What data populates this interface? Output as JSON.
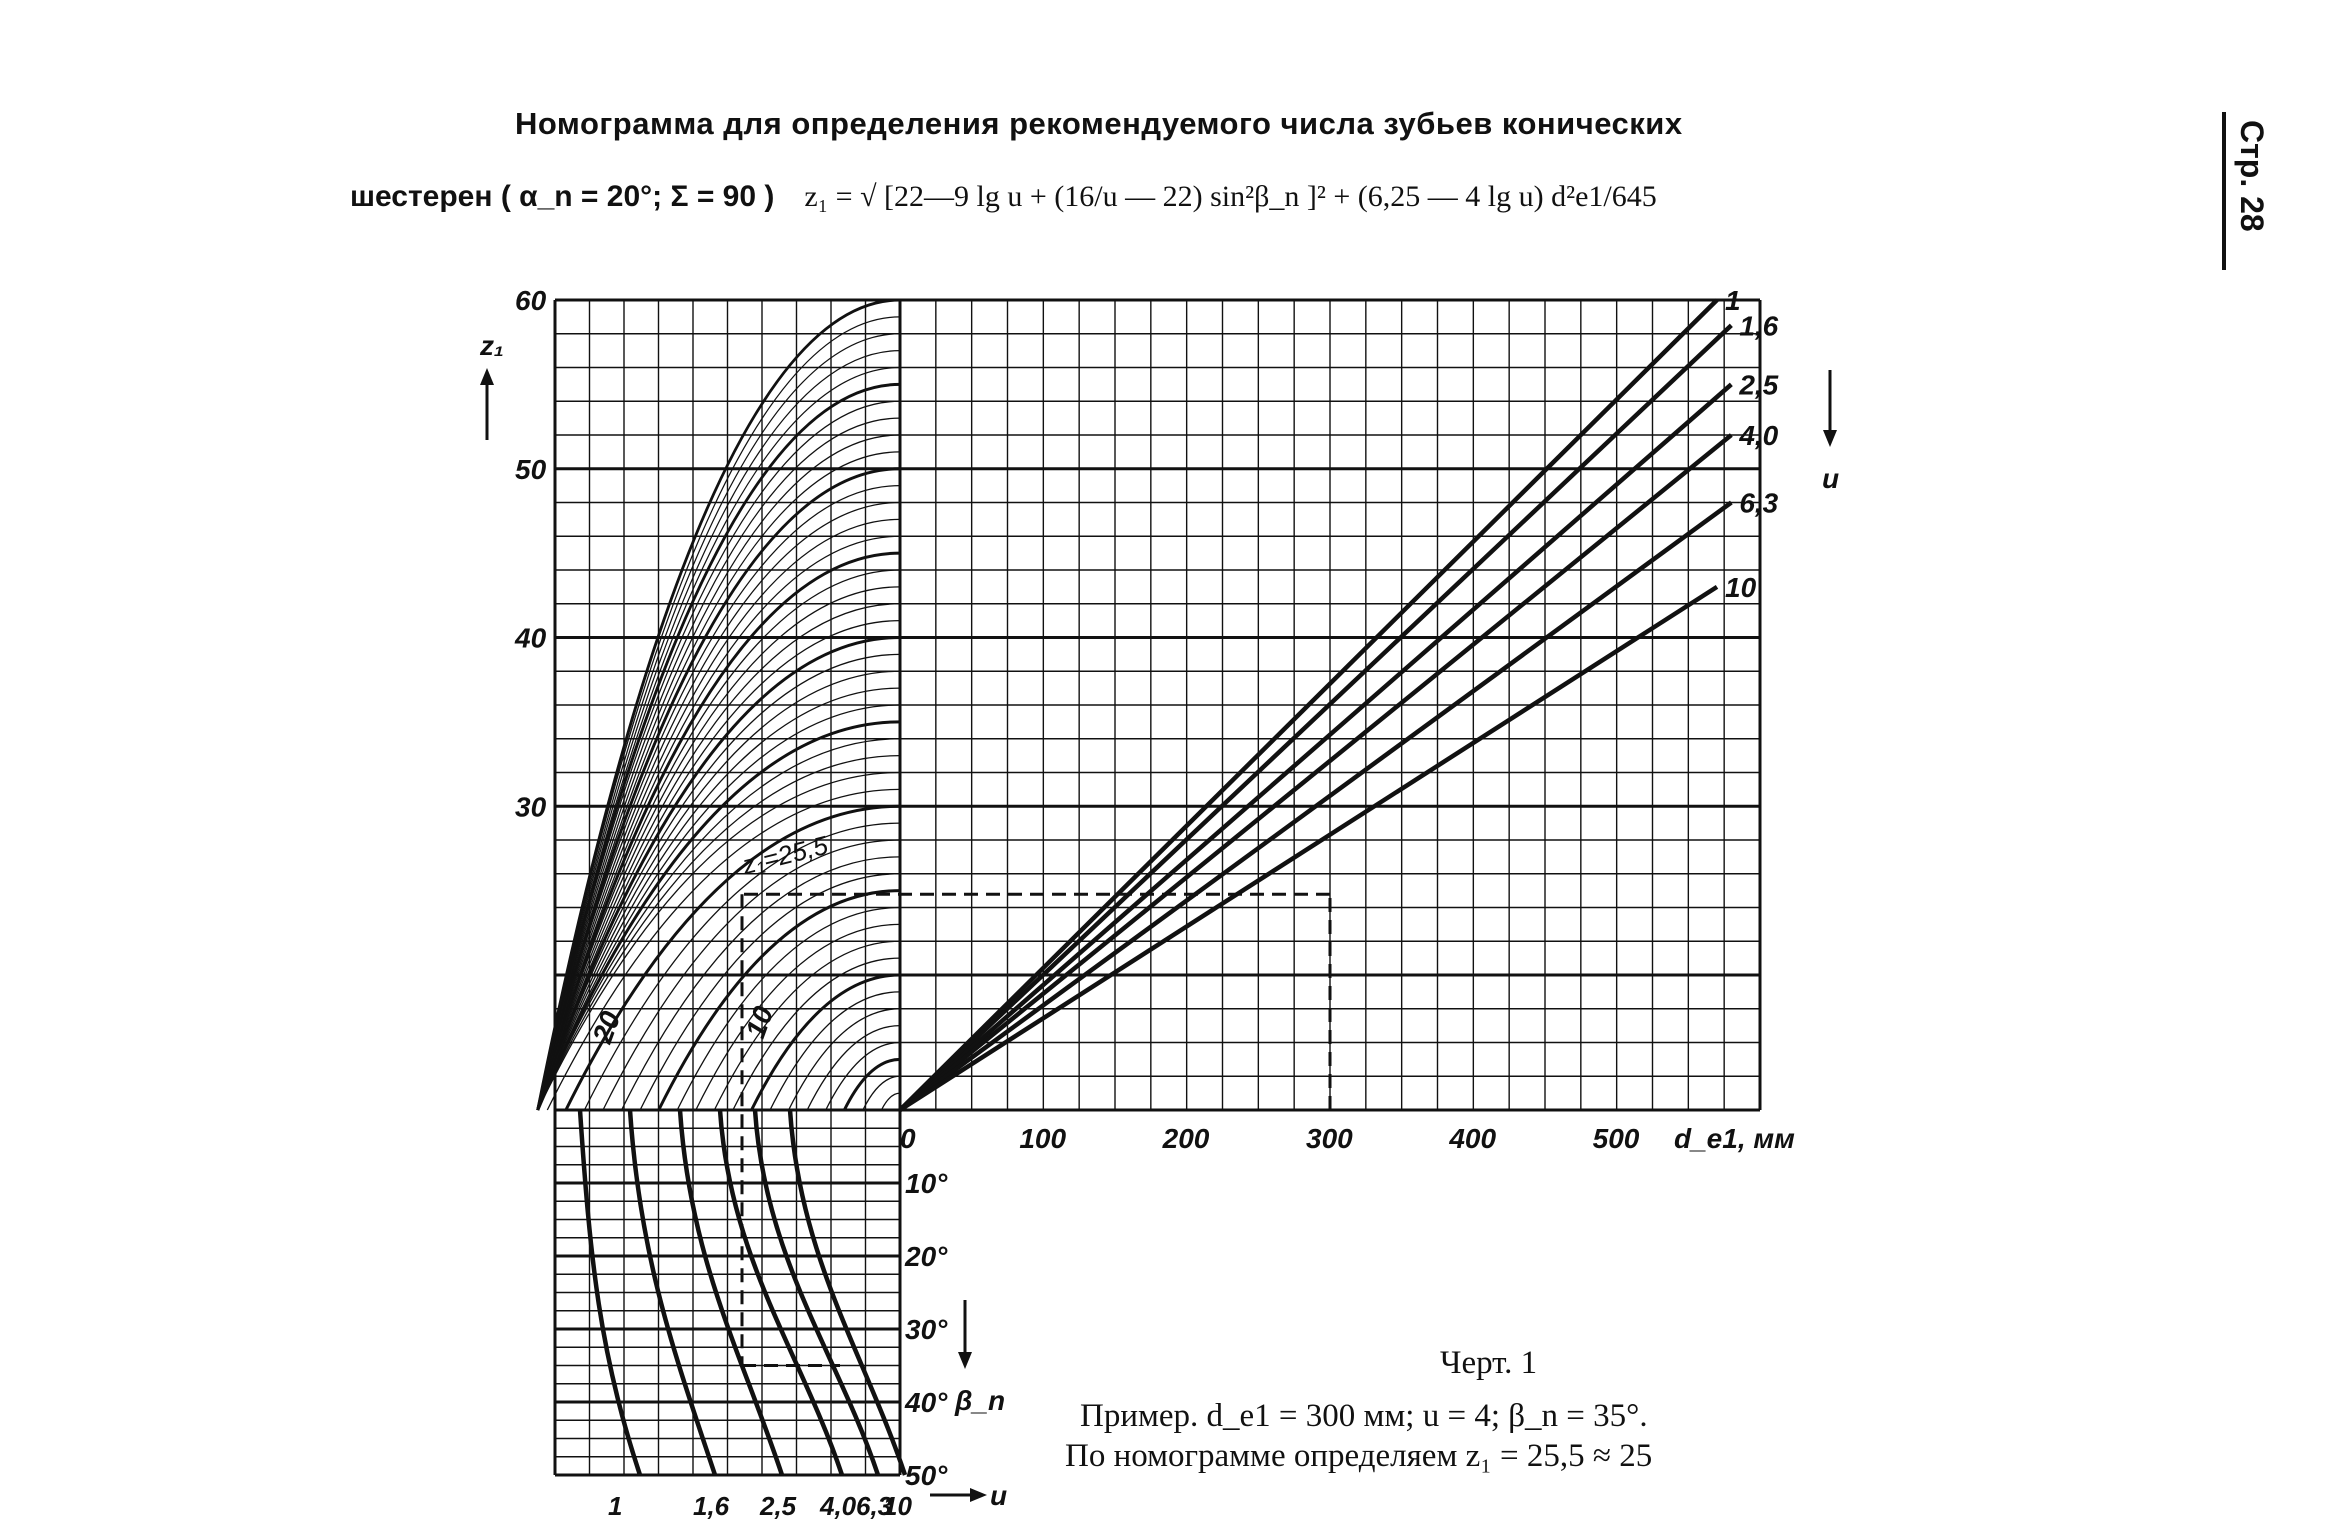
{
  "page": {
    "title": "Номограмма для определения рекомендуемого числа зубьев конических",
    "formula": {
      "lead": "шестерен ( α_n = 20°; Σ = 90 )",
      "expr": "z₁ = √ [22—9 lg u + (16/u — 22) sin²β_n ]² + (6,25 — 4 lg u) d²e1/645"
    },
    "side_label": "Стр. 28",
    "caption": {
      "figure": "Черт. 1",
      "example_line1": "Пример.  d_e1 = 300 мм; u = 4; β_n = 35°.",
      "example_line2": "По номограмме определяем z₁ = 25,5 ≈ 25"
    }
  },
  "chart_data": {
    "type": "line",
    "title": "Номограмма для определения рекомендуемого числа зубьев конических шестерен",
    "panels": {
      "main": {
        "xlabel": "d_e1, мм",
        "ylabel": "z₁",
        "x_ticks": [
          "0",
          "100",
          "200",
          "300",
          "400",
          "500"
        ],
        "y_ticks": [
          "30",
          "40",
          "50",
          "60"
        ],
        "xlim": [
          0,
          600
        ],
        "ylim": [
          12,
          60
        ],
        "u_label": "u",
        "series": [
          {
            "name": "1",
            "x": [
              0,
              570
            ],
            "y": [
              12,
              60
            ]
          },
          {
            "name": "1,6",
            "x": [
              0,
              580
            ],
            "y": [
              12,
              58.5
            ]
          },
          {
            "name": "2,5",
            "x": [
              0,
              580
            ],
            "y": [
              12,
              55
            ]
          },
          {
            "name": "4,0",
            "x": [
              0,
              580
            ],
            "y": [
              12,
              52
            ]
          },
          {
            "name": "6,3",
            "x": [
              0,
              580
            ],
            "y": [
              12,
              48
            ]
          },
          {
            "name": "10",
            "x": [
              0,
              570
            ],
            "y": [
              12,
              43
            ]
          }
        ]
      },
      "beta": {
        "ylabel": "β_n",
        "y_ticks": [
          "10°",
          "20°",
          "30°",
          "40°",
          "50°"
        ],
        "u_label": "u",
        "u_ticks": [
          "1",
          "1,6",
          "2,5",
          "4,0",
          "6,3",
          "10"
        ]
      },
      "arc_labels": [
        "20",
        "10"
      ]
    },
    "example": {
      "d_e1": 300,
      "u": 4,
      "beta_n": 35,
      "z1": 25.5,
      "z1_label": "z₁=25,5"
    },
    "grid": true
  }
}
